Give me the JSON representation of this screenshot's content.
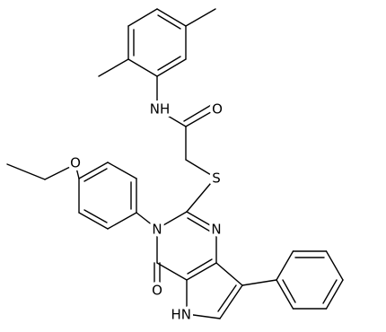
{
  "atoms": {
    "amide_nh": "NH",
    "amide_o": "O",
    "thio_s": "S",
    "ether_o": "O",
    "n3": "N",
    "n1": "N",
    "keto_o": "O",
    "pyrrole_nh": "HN"
  }
}
